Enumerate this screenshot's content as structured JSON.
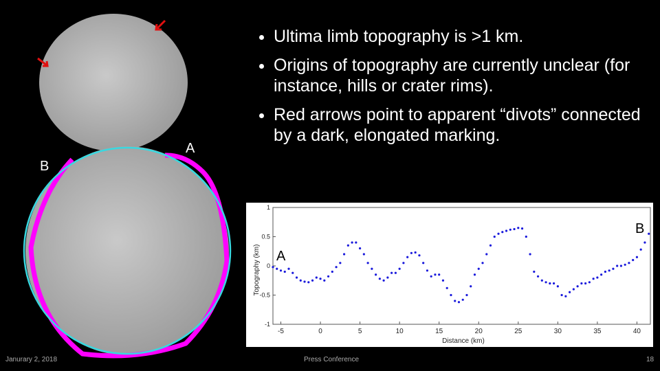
{
  "slide": {
    "bullets": [
      "Ultima limb topography is >1 km.",
      "Origins of topography are currently unclear (for instance, hills or crater rims).",
      "Red arrows point to apparent “divots” connected by a dark, elongated marking."
    ],
    "image_labels": [
      "A",
      "B"
    ],
    "footer": {
      "date": "Janurary 2, 2018",
      "center": "Press Conference",
      "page": "18"
    }
  },
  "chart_data": {
    "type": "scatter",
    "x_label": "Distance (km)",
    "y_label": "Topography (km)",
    "annotations": [
      "A",
      "B"
    ],
    "xlim": [
      -6,
      41.7
    ],
    "xticks": [
      -5,
      0,
      5,
      10,
      15,
      20,
      25,
      30,
      35,
      40
    ],
    "ylim": [
      -1,
      1
    ],
    "yticks": [
      -1,
      -0.5,
      0,
      0.5,
      1
    ],
    "series": [
      {
        "color": "#1a1adc",
        "x": [
          -6,
          -5.5,
          -5,
          -4.5,
          -4,
          -3.5,
          -3,
          -2.5,
          -2,
          -1.5,
          -1,
          -0.5,
          0,
          0.5,
          1,
          1.5,
          2,
          2.5,
          3,
          3.5,
          4,
          4.5,
          5,
          5.5,
          6,
          6.5,
          7,
          7.5,
          8,
          8.5,
          9,
          9.5,
          10,
          10.5,
          11,
          11.5,
          12,
          12.5,
          13,
          13.5,
          14,
          14.5,
          15,
          15.5,
          16,
          16.5,
          17,
          17.5,
          18,
          18.5,
          19,
          19.5,
          20,
          20.5,
          21,
          21.5,
          22,
          22.5,
          23,
          23.5,
          24,
          24.5,
          25,
          25.5,
          26,
          26.5,
          27,
          27.5,
          28,
          28.5,
          29,
          29.5,
          30,
          30.5,
          31,
          31.5,
          32,
          32.5,
          33,
          33.5,
          34,
          34.5,
          35,
          35.5,
          36,
          36.5,
          37,
          37.5,
          38,
          38.5,
          39,
          39.5,
          40,
          40.5,
          41,
          41.5
        ],
        "values": [
          -0.02,
          -0.05,
          -0.08,
          -0.1,
          -0.05,
          -0.12,
          -0.2,
          -0.25,
          -0.27,
          -0.28,
          -0.25,
          -0.2,
          -0.22,
          -0.25,
          -0.18,
          -0.1,
          -0.02,
          0.05,
          0.2,
          0.35,
          0.4,
          0.4,
          0.3,
          0.2,
          0.05,
          -0.05,
          -0.15,
          -0.22,
          -0.25,
          -0.2,
          -0.12,
          -0.12,
          -0.05,
          0.05,
          0.15,
          0.22,
          0.23,
          0.18,
          0.05,
          -0.08,
          -0.18,
          -0.15,
          -0.15,
          -0.25,
          -0.38,
          -0.5,
          -0.6,
          -0.62,
          -0.58,
          -0.5,
          -0.35,
          -0.15,
          -0.05,
          0.05,
          0.2,
          0.35,
          0.5,
          0.55,
          0.58,
          0.6,
          0.62,
          0.63,
          0.65,
          0.64,
          0.5,
          0.2,
          -0.1,
          -0.18,
          -0.25,
          -0.28,
          -0.3,
          -0.3,
          -0.35,
          -0.5,
          -0.52,
          -0.45,
          -0.4,
          -0.35,
          -0.3,
          -0.3,
          -0.28,
          -0.22,
          -0.2,
          -0.15,
          -0.1,
          -0.08,
          -0.05,
          0,
          0,
          0.02,
          0.05,
          0.1,
          0.15,
          0.28,
          0.4,
          0.55
        ]
      }
    ]
  }
}
